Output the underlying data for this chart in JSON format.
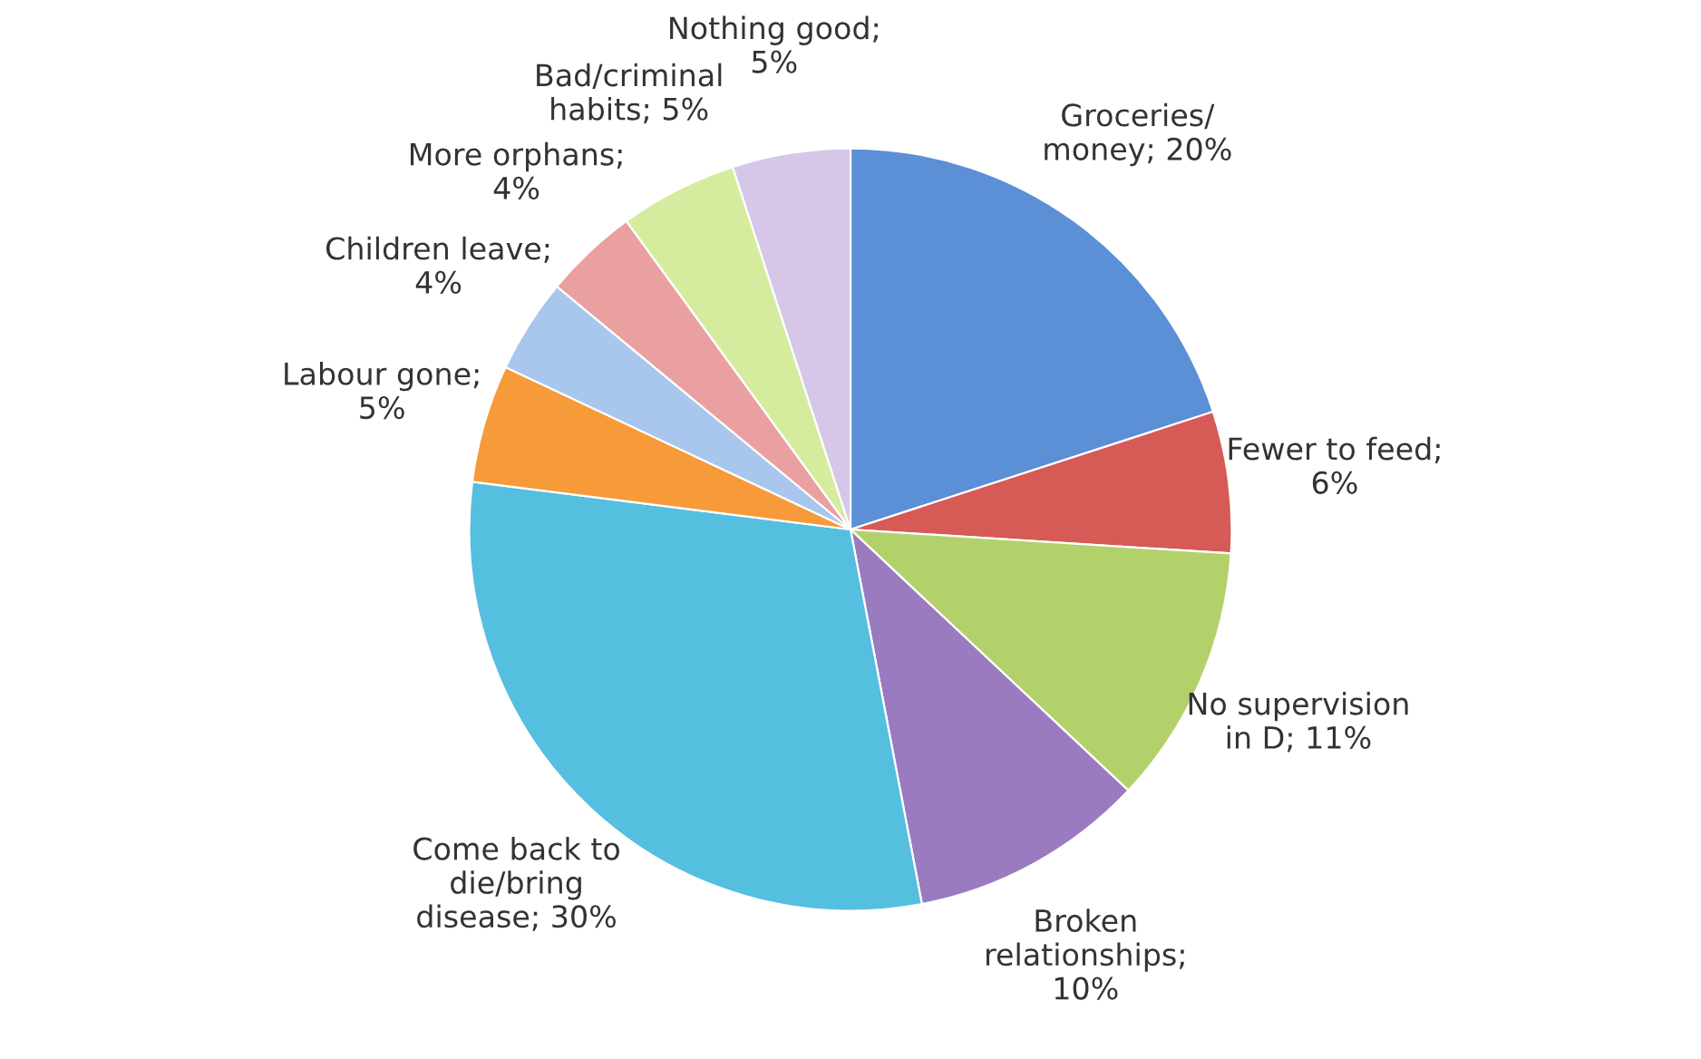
{
  "chart_data": {
    "type": "pie",
    "categories": [
      "Groceries/\nmoney; 20%",
      "Fewer to feed;\n6%",
      "No supervision\nin D; 11%",
      "Broken\nrelationships;\n10%",
      "Come back to\ndie/bring\ndisease; 30%",
      "Labour gone;\n5%",
      "Children leave;\n4%",
      "More orphans;\n4%",
      "Bad/criminal\nhabits; 5%",
      "Nothing good;\n5%"
    ],
    "values": [
      20,
      6,
      11,
      10,
      30,
      5,
      4,
      4,
      5,
      5
    ],
    "colors": [
      "#5b8fd6",
      "#d65a55",
      "#b2d16a",
      "#9a7bbf",
      "#55bfe0",
      "#f79a3a",
      "#a9c6ec",
      "#eaa0a0",
      "#d5ec9e",
      "#d6c6e8"
    ]
  }
}
